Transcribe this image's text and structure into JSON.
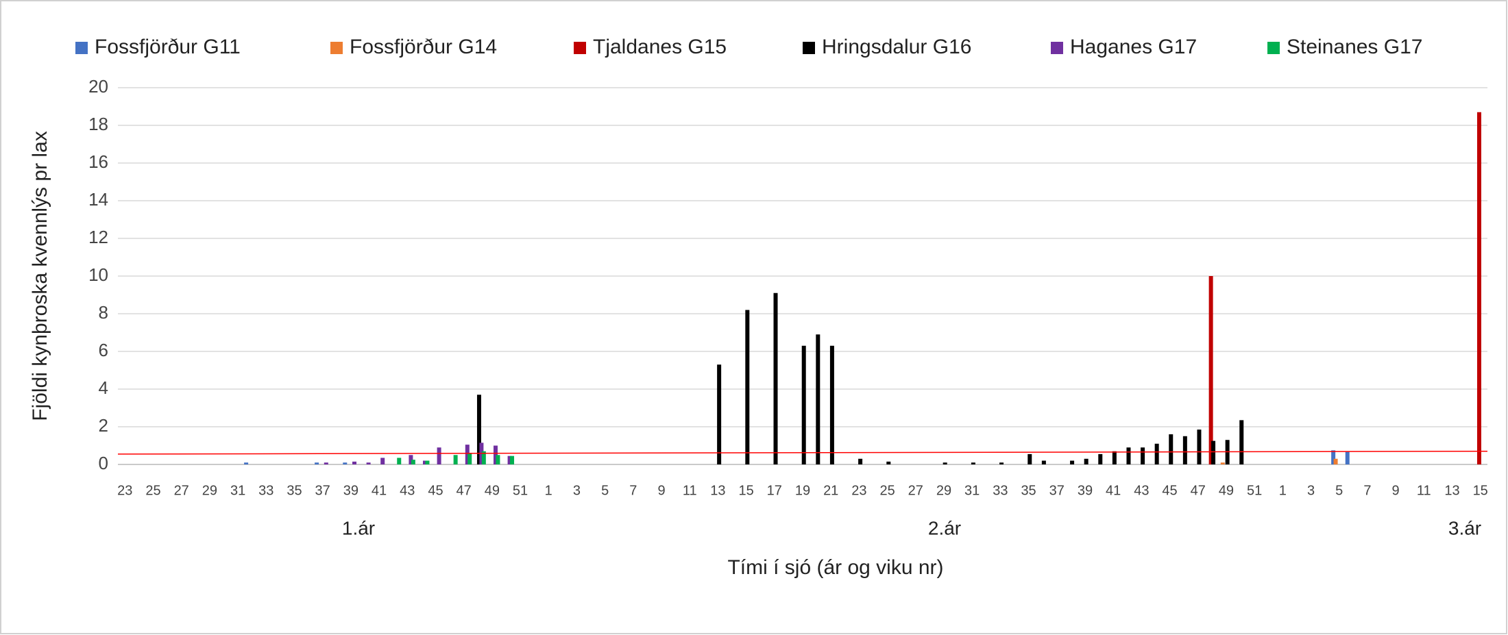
{
  "chart_data": {
    "type": "bar",
    "y_axis_label": "Fjöldi kynþroska kvennlýs pr lax",
    "x_axis_label": "Tími í sjó (ár og viku nr)",
    "groups": [
      "1.ár",
      "2.ár",
      "3.ár"
    ],
    "categories": [
      "23",
      null,
      "25",
      null,
      "27",
      null,
      "29",
      null,
      "31",
      null,
      "33",
      null,
      "35",
      null,
      "37",
      null,
      "39",
      null,
      "41",
      null,
      "43",
      null,
      "45",
      null,
      "47",
      null,
      "49",
      null,
      "51",
      null,
      "1",
      null,
      "3",
      null,
      "5",
      null,
      "7",
      null,
      "9",
      null,
      "11",
      null,
      "13",
      null,
      "15",
      null,
      "17",
      null,
      "19",
      null,
      "21",
      null,
      "23",
      null,
      "25",
      null,
      "27",
      null,
      "29",
      null,
      "31",
      null,
      "33",
      null,
      "35",
      null,
      "37",
      null,
      "39",
      null,
      "41",
      null,
      "43",
      null,
      "45",
      null,
      "47",
      null,
      "49",
      null,
      "51",
      null,
      "1",
      null,
      "3",
      null,
      "5",
      null,
      "7",
      null,
      "9",
      null,
      "11",
      null,
      "13",
      null,
      "15"
    ],
    "series": [
      {
        "name": "Fossfjörður G11",
        "color": "#4472c4",
        "values": [
          null,
          null,
          null,
          null,
          null,
          null,
          null,
          null,
          null,
          0.1,
          null,
          null,
          null,
          null,
          0.1,
          null,
          0.1,
          null,
          null,
          null,
          null,
          null,
          null,
          null,
          null,
          null,
          null,
          null,
          null,
          null,
          null,
          null,
          null,
          null,
          null,
          null,
          null,
          null,
          null,
          null,
          null,
          null,
          null,
          null,
          null,
          null,
          null,
          null,
          null,
          null,
          null,
          null,
          null,
          null,
          null,
          null,
          null,
          null,
          null,
          null,
          null,
          null,
          null,
          null,
          null,
          null,
          null,
          null,
          null,
          null,
          null,
          null,
          null,
          null,
          null,
          null,
          null,
          null,
          null,
          null,
          null,
          null,
          null,
          null,
          null,
          null,
          0.75,
          0.7,
          null,
          null,
          null,
          null,
          null,
          null,
          null,
          null,
          null
        ]
      },
      {
        "name": "Fossfjörður G14",
        "color": "#ed7d31",
        "values": [
          null,
          null,
          null,
          null,
          null,
          null,
          null,
          null,
          null,
          null,
          null,
          null,
          null,
          null,
          null,
          null,
          null,
          null,
          null,
          null,
          null,
          null,
          null,
          null,
          null,
          null,
          null,
          null,
          null,
          null,
          null,
          null,
          null,
          null,
          null,
          null,
          null,
          null,
          null,
          null,
          null,
          null,
          null,
          null,
          null,
          null,
          null,
          null,
          null,
          null,
          null,
          null,
          null,
          null,
          null,
          null,
          null,
          null,
          null,
          null,
          null,
          null,
          null,
          null,
          null,
          null,
          null,
          null,
          null,
          null,
          null,
          null,
          null,
          null,
          null,
          null,
          null,
          null,
          0.1,
          null,
          null,
          null,
          null,
          null,
          null,
          null,
          0.3,
          null,
          null,
          null,
          null,
          null,
          null,
          null,
          null,
          null,
          null
        ]
      },
      {
        "name": "Tjaldanes G15",
        "color": "#c00000",
        "values": [
          null,
          null,
          null,
          null,
          null,
          null,
          null,
          null,
          null,
          null,
          null,
          null,
          null,
          null,
          null,
          null,
          null,
          null,
          null,
          null,
          null,
          null,
          null,
          null,
          null,
          null,
          null,
          null,
          null,
          null,
          null,
          null,
          null,
          null,
          null,
          null,
          null,
          null,
          null,
          null,
          null,
          null,
          null,
          null,
          null,
          null,
          null,
          null,
          null,
          null,
          null,
          null,
          null,
          null,
          null,
          null,
          null,
          null,
          null,
          null,
          null,
          null,
          null,
          null,
          null,
          null,
          null,
          null,
          null,
          null,
          null,
          null,
          null,
          null,
          null,
          null,
          null,
          10,
          null,
          null,
          null,
          null,
          null,
          null,
          null,
          null,
          null,
          null,
          null,
          null,
          null,
          null,
          null,
          null,
          null,
          null,
          18.7
        ]
      },
      {
        "name": "Hringsdalur G16",
        "color": "#000000",
        "values": [
          null,
          null,
          null,
          null,
          null,
          null,
          null,
          null,
          null,
          null,
          null,
          null,
          null,
          null,
          null,
          null,
          null,
          null,
          null,
          null,
          null,
          null,
          null,
          null,
          null,
          3.7,
          null,
          null,
          null,
          null,
          null,
          null,
          null,
          null,
          null,
          null,
          null,
          null,
          null,
          null,
          null,
          null,
          5.3,
          null,
          8.2,
          null,
          9.1,
          null,
          6.3,
          6.9,
          6.3,
          null,
          0.3,
          null,
          0.15,
          null,
          null,
          null,
          0.1,
          null,
          0.1,
          null,
          0.1,
          null,
          0.55,
          0.2,
          null,
          0.2,
          0.3,
          0.55,
          0.7,
          0.9,
          0.9,
          1.1,
          1.6,
          1.5,
          1.85,
          1.25,
          1.3,
          2.35,
          null,
          null,
          null,
          null,
          null,
          null,
          null,
          null,
          null,
          null,
          null,
          null,
          null,
          null,
          null,
          null,
          null
        ]
      },
      {
        "name": "Haganes G17",
        "color": "#7030a0",
        "values": [
          null,
          null,
          null,
          null,
          null,
          null,
          null,
          null,
          null,
          null,
          null,
          null,
          null,
          null,
          0.1,
          null,
          0.15,
          0.1,
          0.35,
          null,
          0.5,
          0.2,
          0.9,
          null,
          1.05,
          1.15,
          1.0,
          0.45,
          null,
          null,
          null,
          null,
          null,
          null,
          null,
          null,
          null,
          null,
          null,
          null,
          null,
          null,
          null,
          null,
          null,
          null,
          null,
          null,
          null,
          null,
          null,
          null,
          null,
          null,
          null,
          null,
          null,
          null,
          null,
          null,
          null,
          null,
          null,
          null,
          null,
          null,
          null,
          null,
          null,
          null,
          null,
          null,
          null,
          null,
          null,
          null,
          null,
          null,
          null,
          null,
          null,
          null,
          null,
          null,
          null,
          null,
          null,
          null,
          null,
          null,
          null,
          null,
          null,
          null,
          null,
          null,
          null
        ]
      },
      {
        "name": "Steinanes G17",
        "color": "#00b050",
        "values": [
          null,
          null,
          null,
          null,
          null,
          null,
          null,
          null,
          null,
          null,
          null,
          null,
          null,
          null,
          null,
          null,
          null,
          null,
          null,
          0.35,
          0.25,
          0.2,
          null,
          0.5,
          0.6,
          0.7,
          0.5,
          0.45,
          null,
          null,
          null,
          null,
          null,
          null,
          null,
          null,
          null,
          null,
          null,
          null,
          null,
          null,
          null,
          null,
          null,
          null,
          null,
          null,
          null,
          null,
          null,
          null,
          null,
          null,
          null,
          null,
          null,
          null,
          null,
          null,
          null,
          null,
          null,
          null,
          null,
          null,
          null,
          null,
          null,
          null,
          null,
          null,
          null,
          null,
          null,
          null,
          null,
          null,
          null,
          null,
          null,
          null,
          null,
          null,
          null,
          null,
          null,
          null,
          null,
          null,
          null,
          null,
          null,
          null,
          null,
          null,
          null
        ]
      }
    ],
    "trend_line": {
      "color": "#ff0000",
      "start": 0.55,
      "end": 0.7
    },
    "ylim": [
      0,
      20
    ],
    "yticks": [
      0,
      2,
      4,
      6,
      8,
      10,
      12,
      14,
      16,
      18,
      20
    ],
    "grid": true,
    "legend": "top"
  }
}
